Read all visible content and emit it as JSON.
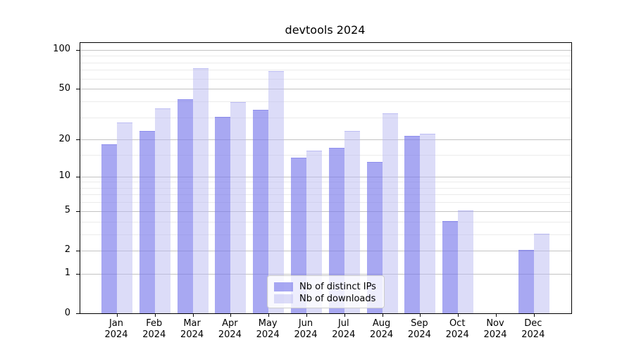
{
  "title": "devtools 2024",
  "legend": {
    "items": [
      {
        "label": "Nb of distinct IPs"
      },
      {
        "label": "Nb of downloads"
      }
    ]
  },
  "colors": {
    "distinct_ips_bar": "rgba(121,121,235,0.65)",
    "downloads_bar": "rgba(185,185,241,0.5)",
    "grid_major": "#c3c3c3",
    "grid_minor": "#ebebeb",
    "axis": "#000000"
  },
  "chart_data": {
    "type": "bar",
    "title": "devtools 2024",
    "categories": [
      "Jan 2024",
      "Feb 2024",
      "Mar 2024",
      "Apr 2024",
      "May 2024",
      "Jun 2024",
      "Jul 2024",
      "Aug 2024",
      "Sep 2024",
      "Oct 2024",
      "Nov 2024",
      "Dec 2024"
    ],
    "series": [
      {
        "name": "Nb of distinct IPs",
        "values": [
          18,
          23,
          41,
          30,
          34,
          14,
          17,
          13,
          21,
          4,
          0,
          2
        ],
        "color": "rgba(121,121,235,0.65)"
      },
      {
        "name": "Nb of downloads",
        "values": [
          27,
          35,
          71,
          39,
          68,
          16,
          23,
          32,
          22,
          5,
          0,
          3
        ],
        "color": "rgba(185,185,241,0.5)"
      }
    ],
    "xlabel": "",
    "ylabel": "",
    "yscale": "log1p",
    "yticks": [
      0,
      1,
      2,
      5,
      10,
      20,
      50,
      100
    ],
    "yticks_minor": [
      3,
      4,
      6,
      7,
      8,
      9,
      15,
      30,
      40,
      60,
      70,
      80,
      90
    ],
    "ylim": [
      0,
      113
    ],
    "grid": true,
    "legend_position": "lower center"
  }
}
